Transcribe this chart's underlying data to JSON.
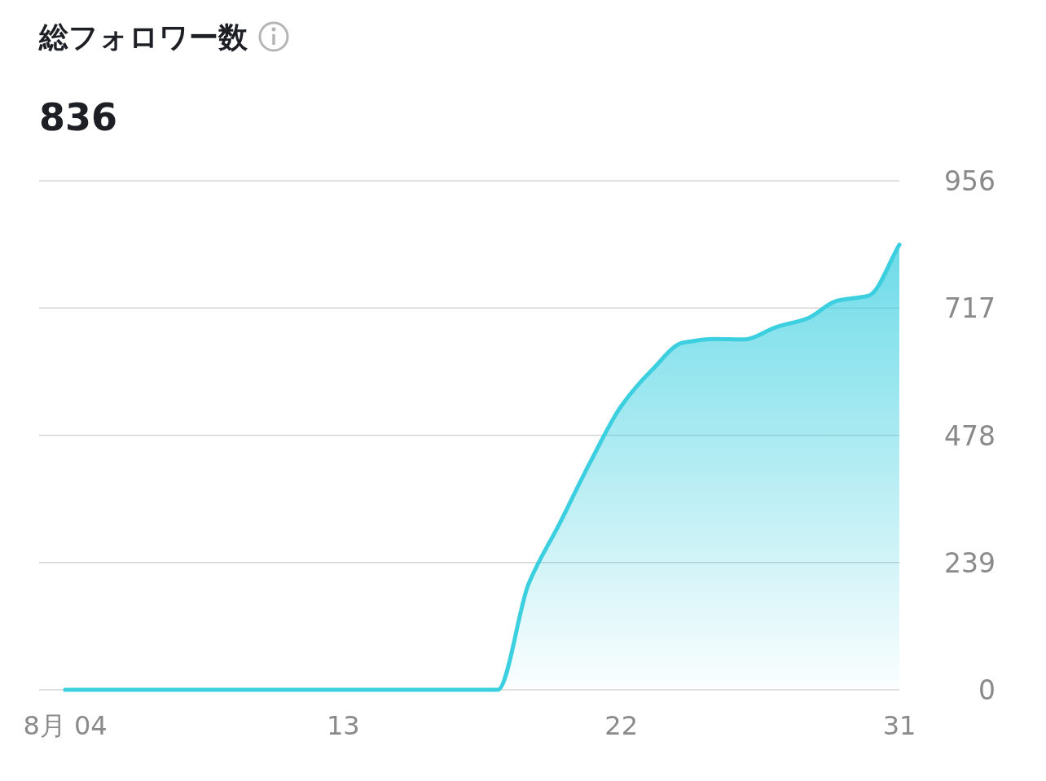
{
  "chart_data": {
    "type": "area",
    "title": "総フォロワー数",
    "subtitle": "836",
    "categories": [
      "8月 04",
      null,
      null,
      null,
      null,
      null,
      null,
      null,
      null,
      "13",
      null,
      null,
      null,
      null,
      null,
      null,
      null,
      null,
      "22",
      null,
      null,
      null,
      null,
      null,
      null,
      null,
      null,
      "31"
    ],
    "values": [
      0,
      0,
      0,
      0,
      0,
      0,
      0,
      0,
      0,
      0,
      0,
      0,
      0,
      0,
      0,
      199,
      312,
      428,
      533,
      601,
      652,
      659,
      658,
      681,
      697,
      731,
      740,
      836
    ],
    "color": "#3ccfe0",
    "ylim": [
      0,
      956
    ],
    "yticks": [
      0,
      239,
      478,
      717,
      956
    ],
    "grid": "y"
  }
}
